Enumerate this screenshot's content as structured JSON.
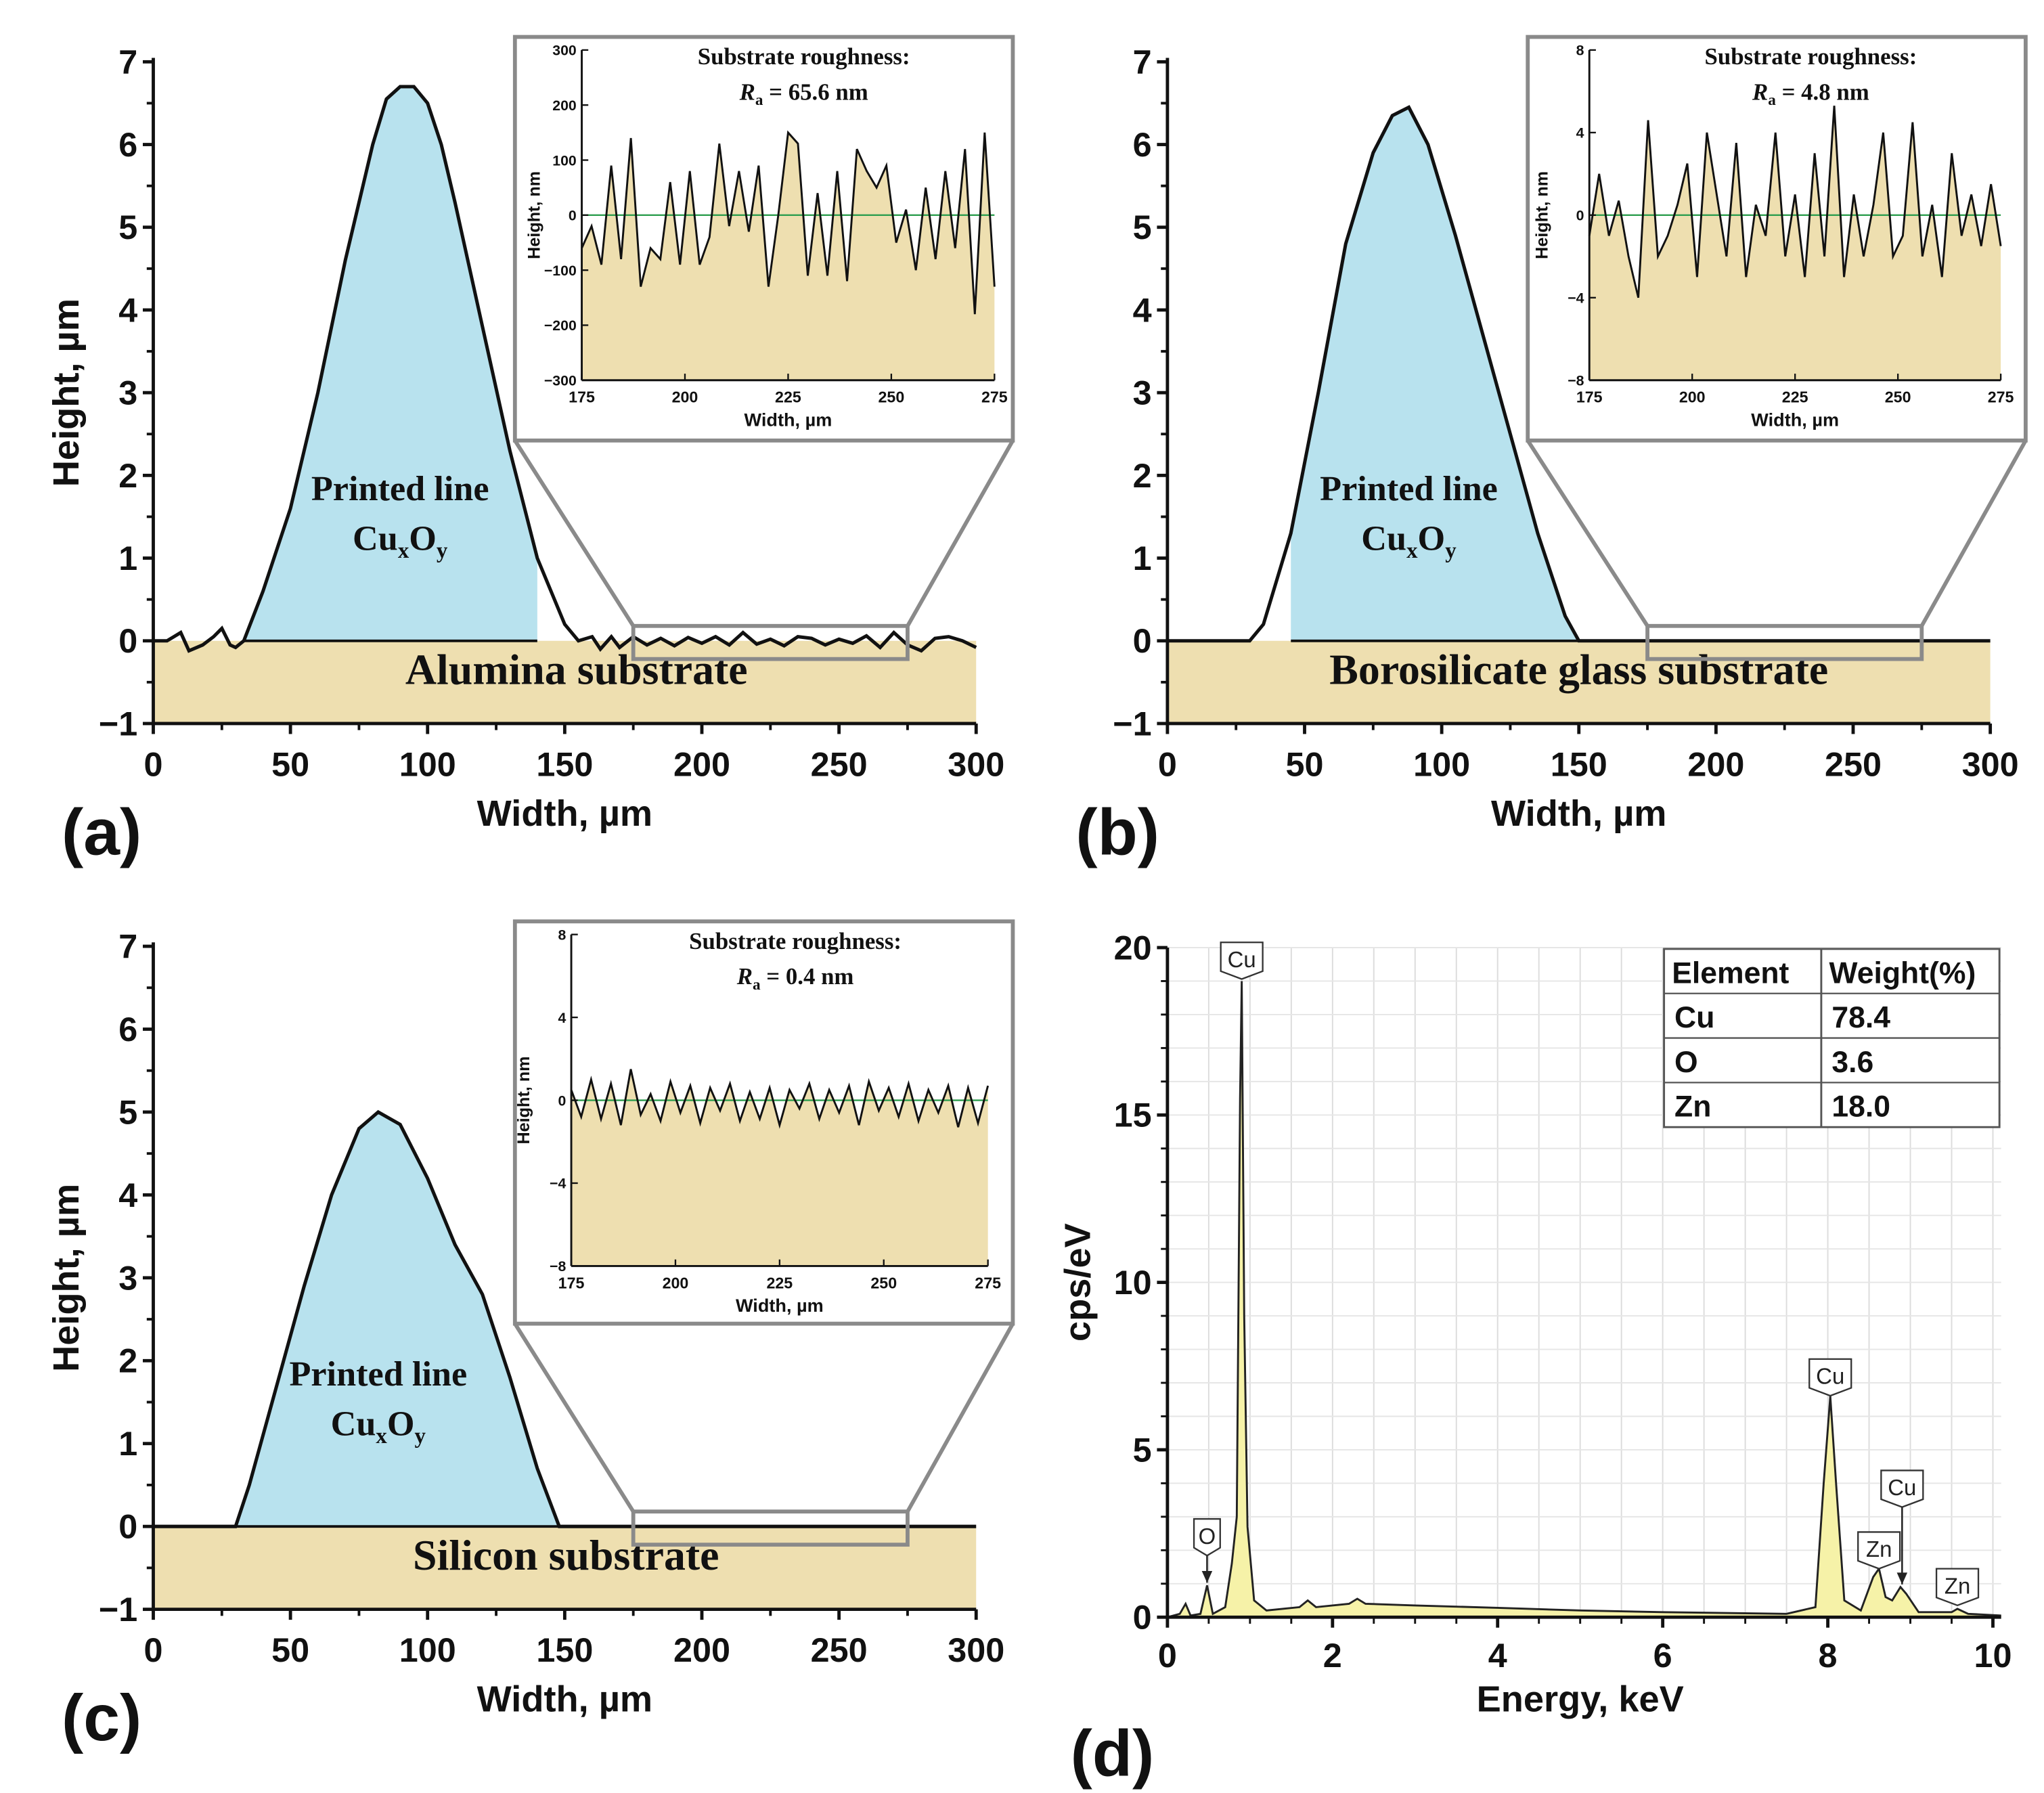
{
  "colors": {
    "line_fill": "#b8e2ee",
    "substrate_fill": "#eedfb0",
    "spectrum_fill": "#f6f2a8",
    "zero_line": "#2e9e4f",
    "frame_gray": "#8a8a8a"
  },
  "chart_data": [
    {
      "type": "area",
      "panel_label": "(a)",
      "xlabel": "Width, µm",
      "ylabel": "Height, µm",
      "xlim": [
        0,
        300
      ],
      "ylim": [
        -1,
        7
      ],
      "xticks": [
        "0",
        "50",
        "100",
        "150",
        "200",
        "250",
        "300"
      ],
      "yticks": [
        "−1",
        "0",
        "1",
        "2",
        "3",
        "4",
        "5",
        "6",
        "7"
      ],
      "annotation_line1": "Printed line",
      "annotation_line2_main": "Cu",
      "annotation_sub_x": "x",
      "annotation_o": "O",
      "annotation_sub_y": "y",
      "substrate_label": "Alumina substrate",
      "profile": [
        [
          0,
          0
        ],
        [
          5,
          0
        ],
        [
          10,
          0.1
        ],
        [
          13,
          -0.12
        ],
        [
          18,
          -0.05
        ],
        [
          22,
          0.05
        ],
        [
          25,
          0.15
        ],
        [
          28,
          -0.05
        ],
        [
          30,
          -0.08
        ],
        [
          33,
          0
        ],
        [
          40,
          0.6
        ],
        [
          50,
          1.6
        ],
        [
          60,
          3.0
        ],
        [
          70,
          4.6
        ],
        [
          80,
          6.0
        ],
        [
          85,
          6.55
        ],
        [
          90,
          6.7
        ],
        [
          95,
          6.7
        ],
        [
          100,
          6.5
        ],
        [
          105,
          6.0
        ],
        [
          110,
          5.3
        ],
        [
          120,
          3.8
        ],
        [
          130,
          2.3
        ],
        [
          140,
          1.0
        ],
        [
          150,
          0.2
        ],
        [
          155,
          0
        ],
        [
          160,
          0.05
        ],
        [
          163,
          -0.1
        ],
        [
          167,
          0.05
        ],
        [
          170,
          -0.08
        ],
        [
          175,
          0.05
        ],
        [
          180,
          -0.05
        ],
        [
          185,
          0.03
        ],
        [
          190,
          -0.06
        ],
        [
          195,
          0.04
        ],
        [
          200,
          -0.03
        ],
        [
          205,
          0.05
        ],
        [
          210,
          -0.05
        ],
        [
          215,
          0.1
        ],
        [
          220,
          -0.04
        ],
        [
          225,
          0.02
        ],
        [
          230,
          -0.06
        ],
        [
          235,
          0.05
        ],
        [
          240,
          0.03
        ],
        [
          245,
          -0.05
        ],
        [
          250,
          0.02
        ],
        [
          255,
          -0.03
        ],
        [
          260,
          0.06
        ],
        [
          265,
          -0.08
        ],
        [
          270,
          0.1
        ],
        [
          275,
          -0.05
        ],
        [
          280,
          -0.12
        ],
        [
          285,
          0.03
        ],
        [
          290,
          0.05
        ],
        [
          295,
          0.0
        ],
        [
          300,
          -0.08
        ]
      ],
      "zoom_window_x": [
        175,
        275
      ],
      "inset": {
        "title": "Substrate roughness:",
        "ra_symbol": "R",
        "ra_sub": "a",
        "ra_value": " = 65.6 nm",
        "xlabel": "Width, µm",
        "ylabel": "Height, nm",
        "xlim": [
          175,
          275
        ],
        "ylim": [
          -300,
          300
        ],
        "xticks": [
          "175",
          "200",
          "225",
          "250",
          "275"
        ],
        "yticks": [
          "−300",
          "−200",
          "−100",
          "0",
          "100",
          "200",
          "300"
        ],
        "values": [
          -60,
          -20,
          -90,
          90,
          -80,
          140,
          -130,
          -60,
          -80,
          60,
          -90,
          80,
          -90,
          -40,
          130,
          -20,
          80,
          -30,
          90,
          -130,
          0,
          150,
          130,
          -110,
          40,
          -110,
          80,
          -120,
          120,
          80,
          50,
          90,
          -50,
          10,
          -100,
          50,
          -80,
          80,
          -60,
          120,
          -180,
          150,
          -130
        ]
      }
    },
    {
      "type": "area",
      "panel_label": "(b)",
      "xlabel": "Width, µm",
      "ylabel": "Height, µm",
      "xlim": [
        0,
        300
      ],
      "ylim": [
        -1,
        7
      ],
      "xticks": [
        "0",
        "50",
        "100",
        "150",
        "200",
        "250",
        "300"
      ],
      "yticks": [
        "−1",
        "0",
        "1",
        "2",
        "3",
        "4",
        "5",
        "6",
        "7"
      ],
      "annotation_line1": "Printed line",
      "annotation_line2_main": "Cu",
      "annotation_sub_x": "x",
      "annotation_o": "O",
      "annotation_sub_y": "y",
      "substrate_label": "Borosilicate glass substrate",
      "profile": [
        [
          0,
          0
        ],
        [
          30,
          0
        ],
        [
          35,
          0.2
        ],
        [
          45,
          1.3
        ],
        [
          55,
          3.0
        ],
        [
          65,
          4.8
        ],
        [
          75,
          5.9
        ],
        [
          82,
          6.35
        ],
        [
          88,
          6.45
        ],
        [
          95,
          6.0
        ],
        [
          105,
          4.9
        ],
        [
          115,
          3.7
        ],
        [
          125,
          2.5
        ],
        [
          135,
          1.3
        ],
        [
          145,
          0.3
        ],
        [
          150,
          0
        ],
        [
          300,
          0
        ]
      ],
      "zoom_window_x": [
        175,
        275
      ],
      "inset": {
        "title": "Substrate roughness:",
        "ra_symbol": "R",
        "ra_sub": "a",
        "ra_value": " = 4.8 nm",
        "xlabel": "Width, µm",
        "ylabel": "Height, nm",
        "xlim": [
          175,
          275
        ],
        "ylim": [
          -8,
          8
        ],
        "xticks": [
          "175",
          "200",
          "225",
          "250",
          "275"
        ],
        "yticks": [
          "−8",
          "−4",
          "0",
          "4",
          "8"
        ],
        "values": [
          -1,
          2,
          -1,
          0.7,
          -2,
          -4,
          4.6,
          -2,
          -1,
          0.5,
          2.5,
          -3,
          4,
          1,
          -2,
          3.5,
          -3,
          0.5,
          -1,
          4,
          -2,
          1,
          -3,
          3,
          -2,
          5.3,
          -3,
          1,
          -2,
          0.5,
          4,
          -2,
          -1,
          4.5,
          -2,
          0.5,
          -3,
          3,
          -1,
          1,
          -1.5,
          1.5,
          -1.5
        ]
      }
    },
    {
      "type": "area",
      "panel_label": "(c)",
      "xlabel": "Width, µm",
      "ylabel": "Height, µm",
      "xlim": [
        0,
        300
      ],
      "ylim": [
        -1,
        7
      ],
      "xticks": [
        "0",
        "50",
        "100",
        "150",
        "200",
        "250",
        "300"
      ],
      "yticks": [
        "−1",
        "0",
        "1",
        "2",
        "3",
        "4",
        "5",
        "6",
        "7"
      ],
      "annotation_line1": "Printed line",
      "annotation_line2_main": "Cu",
      "annotation_sub_x": "x",
      "annotation_o": "O",
      "annotation_sub_y": "y",
      "substrate_label": "Silicon substrate",
      "profile": [
        [
          0,
          0
        ],
        [
          30,
          0
        ],
        [
          35,
          0.5
        ],
        [
          45,
          1.7
        ],
        [
          55,
          2.9
        ],
        [
          65,
          4.0
        ],
        [
          75,
          4.8
        ],
        [
          82,
          5.0
        ],
        [
          90,
          4.85
        ],
        [
          100,
          4.2
        ],
        [
          110,
          3.4
        ],
        [
          120,
          2.8
        ],
        [
          130,
          1.8
        ],
        [
          140,
          0.7
        ],
        [
          148,
          0
        ],
        [
          300,
          0
        ]
      ],
      "zoom_window_x": [
        175,
        275
      ],
      "inset": {
        "title": "Substrate roughness:",
        "ra_symbol": "R",
        "ra_sub": "a",
        "ra_value": " = 0.4 nm",
        "xlabel": "Width, µm",
        "ylabel": "Height, nm",
        "xlim": [
          175,
          275
        ],
        "ylim": [
          -8,
          8
        ],
        "xticks": [
          "175",
          "200",
          "225",
          "250",
          "275"
        ],
        "yticks": [
          "−8",
          "−4",
          "0",
          "4",
          "8"
        ],
        "values": [
          0.5,
          -0.8,
          1.0,
          -0.9,
          0.8,
          -1.2,
          1.5,
          -0.7,
          0.3,
          -1,
          0.9,
          -0.6,
          0.7,
          -1.1,
          0.6,
          -0.5,
          0.8,
          -1,
          0.4,
          -0.9,
          0.6,
          -1.2,
          0.5,
          -0.4,
          0.8,
          -0.9,
          0.5,
          -0.6,
          0.7,
          -1.2,
          0.9,
          -0.5,
          0.6,
          -0.8,
          0.8,
          -1,
          0.5,
          -0.6,
          0.7,
          -1.3,
          0.6,
          -1.1,
          0.7
        ]
      }
    },
    {
      "type": "line",
      "panel_label": "(d)",
      "xlabel": "Energy, keV",
      "ylabel": "cps/eV",
      "xlim": [
        0,
        10.1
      ],
      "ylim": [
        0,
        20
      ],
      "grid": true,
      "xticks": [
        "0",
        "2",
        "4",
        "6",
        "8",
        "10"
      ],
      "yticks": [
        "0",
        "5",
        "10",
        "15",
        "20"
      ],
      "spectrum": [
        [
          0,
          0
        ],
        [
          0.15,
          0.1
        ],
        [
          0.22,
          0.4
        ],
        [
          0.28,
          0.05
        ],
        [
          0.4,
          0.1
        ],
        [
          0.48,
          0.95
        ],
        [
          0.55,
          0.1
        ],
        [
          0.7,
          0.3
        ],
        [
          0.78,
          1.6
        ],
        [
          0.84,
          3
        ],
        [
          0.88,
          15.5
        ],
        [
          0.9,
          19
        ],
        [
          0.93,
          9
        ],
        [
          0.97,
          2.7
        ],
        [
          1.05,
          0.5
        ],
        [
          1.2,
          0.2
        ],
        [
          1.6,
          0.3
        ],
        [
          1.7,
          0.5
        ],
        [
          1.8,
          0.3
        ],
        [
          2.2,
          0.4
        ],
        [
          2.3,
          0.55
        ],
        [
          2.4,
          0.4
        ],
        [
          3,
          0.35
        ],
        [
          4,
          0.28
        ],
        [
          5,
          0.2
        ],
        [
          6,
          0.15
        ],
        [
          7.5,
          0.1
        ],
        [
          7.85,
          0.3
        ],
        [
          7.95,
          4
        ],
        [
          8.03,
          6.6
        ],
        [
          8.1,
          4
        ],
        [
          8.2,
          0.5
        ],
        [
          8.4,
          0.2
        ],
        [
          8.55,
          1.2
        ],
        [
          8.62,
          1.45
        ],
        [
          8.7,
          0.6
        ],
        [
          8.78,
          0.5
        ],
        [
          8.88,
          0.9
        ],
        [
          8.95,
          0.7
        ],
        [
          9.1,
          0.15
        ],
        [
          9.5,
          0.15
        ],
        [
          9.57,
          0.25
        ],
        [
          9.7,
          0.1
        ],
        [
          10.1,
          0.05
        ]
      ],
      "peak_labels": [
        {
          "label": "Cu",
          "x": 0.9,
          "y": 19.2,
          "arrow": false
        },
        {
          "label": "O",
          "x": 0.48,
          "y": 0.95,
          "arrow": true
        },
        {
          "label": "Cu",
          "x": 8.03,
          "y": 6.7,
          "arrow": false
        },
        {
          "label": "Zn",
          "x": 8.62,
          "y": 1.5,
          "arrow": false
        },
        {
          "label": "Cu",
          "x": 8.9,
          "y": 0.9,
          "arrow": true
        },
        {
          "label": "Zn",
          "x": 9.57,
          "y": 0.3,
          "arrow": false
        }
      ],
      "table": {
        "headers": [
          "Element",
          "Weight(%)"
        ],
        "rows": [
          [
            "Cu",
            "78.4"
          ],
          [
            "O",
            "3.6"
          ],
          [
            "Zn",
            "18.0"
          ]
        ]
      }
    }
  ]
}
